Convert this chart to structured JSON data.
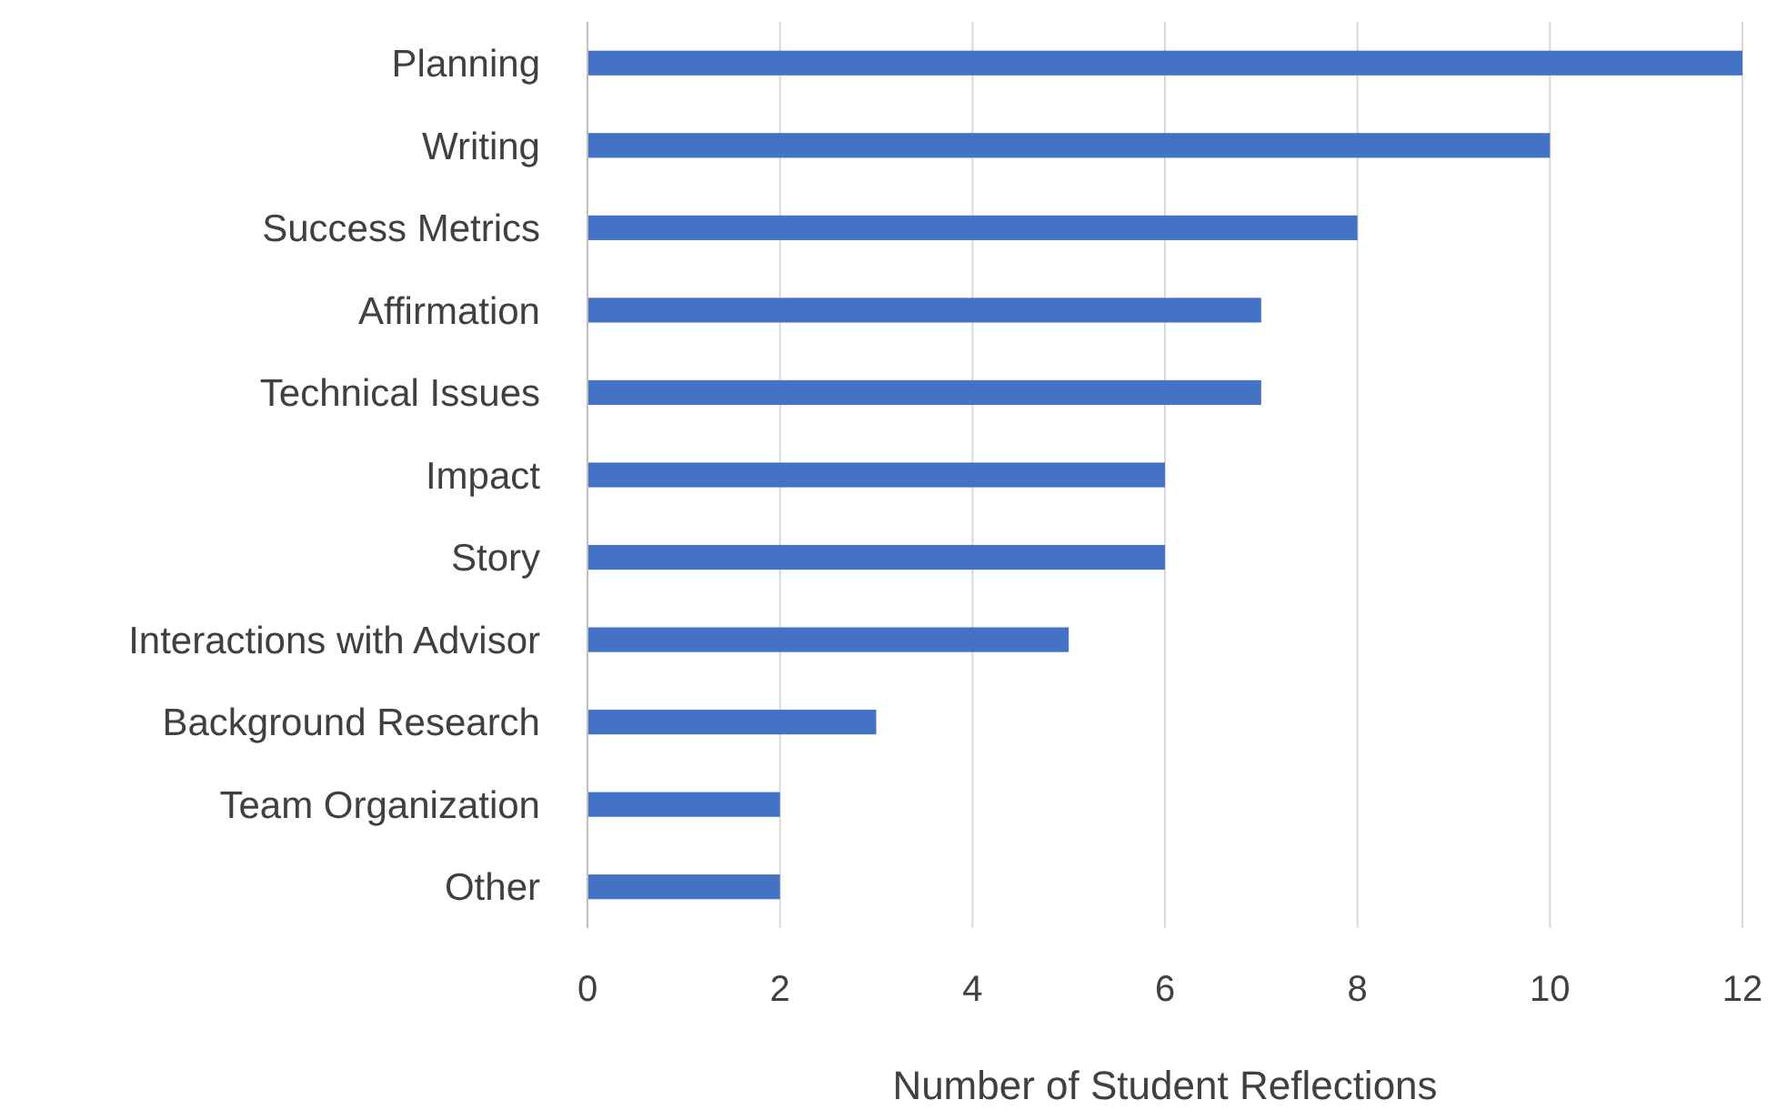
{
  "chart_data": {
    "type": "bar",
    "orientation": "horizontal",
    "xlabel": "Number of Student Reflections",
    "categories": [
      "Planning",
      "Writing",
      "Success Metrics",
      "Affirmation",
      "Technical Issues",
      "Impact",
      "Story",
      "Interactions with Advisor",
      "Background Research",
      "Team Organization",
      "Other"
    ],
    "values": [
      12,
      10,
      8,
      7,
      7,
      6,
      6,
      5,
      3,
      2,
      2
    ],
    "color": "#4472c4",
    "xlim": [
      0,
      12
    ],
    "xticks": [
      0,
      2,
      4,
      6,
      8,
      10,
      12
    ],
    "grid": "x"
  }
}
